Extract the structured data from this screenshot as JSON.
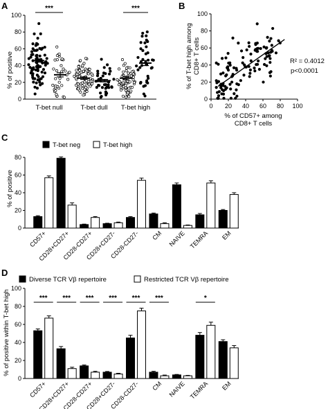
{
  "panel_labels": {
    "a": "A",
    "b": "B",
    "c": "C",
    "d": "D"
  },
  "chart_data": [
    {
      "id": "A",
      "type": "scatter",
      "subtype": "dot-column",
      "ylabel": "% of positive",
      "ylim": [
        0,
        100
      ],
      "yticks": [
        0,
        20,
        40,
        60,
        80,
        100
      ],
      "groups": [
        "T-bet null",
        "T-bet dull",
        "T-bet high"
      ],
      "columns": [
        {
          "group": "T-bet null",
          "marker": "filled",
          "mean": 46,
          "sem": 2
        },
        {
          "group": "T-bet null",
          "marker": "open",
          "mean": 29,
          "sem": 2.5
        },
        {
          "group": "T-bet dull",
          "marker": "open",
          "mean": 25,
          "sem": 1.5
        },
        {
          "group": "T-bet dull",
          "marker": "filled",
          "mean": 22,
          "sem": 1.5
        },
        {
          "group": "T-bet high",
          "marker": "open",
          "mean": 25,
          "sem": 2
        },
        {
          "group": "T-bet high",
          "marker": "filled",
          "mean": 43,
          "sem": 3
        }
      ],
      "significance": [
        {
          "group": "T-bet null",
          "label": "***"
        },
        {
          "group": "T-bet high",
          "label": "***"
        }
      ]
    },
    {
      "id": "B",
      "type": "scatter",
      "xlabel_lines": [
        "% of CD57+ among",
        "CD8+ T cells"
      ],
      "ylabel_lines": [
        "% of T-bet high among",
        "CD8+ T cells"
      ],
      "xlim": [
        0,
        100
      ],
      "ylim": [
        0,
        100
      ],
      "xticks": [
        0,
        20,
        40,
        60,
        80,
        100
      ],
      "yticks": [
        0,
        20,
        40,
        60,
        80,
        100
      ],
      "regression": {
        "x": [
          8,
          85
        ],
        "y": [
          15,
          70
        ]
      },
      "r2_text": "R² = 0.4012",
      "p_text": "p<0.0001"
    },
    {
      "id": "C",
      "type": "bar",
      "ylabel": "% of positive",
      "ylim": [
        0,
        80
      ],
      "yticks": [
        0,
        20,
        40,
        60,
        80
      ],
      "categories": [
        "CD57+",
        "CD28+CD27+",
        "CD28-CD27+",
        "CD28+CD27-",
        "CD28-CD27-",
        "CM",
        "NAIVE",
        "TEMRA",
        "EM"
      ],
      "series": [
        {
          "name": "T-bet neg",
          "fill": "#000000",
          "values": [
            13,
            79,
            4,
            5,
            12,
            16,
            49,
            15,
            20
          ],
          "errors": [
            1,
            1.5,
            0.5,
            0.5,
            1,
            1,
            2,
            1.5,
            1
          ]
        },
        {
          "name": "T-bet high",
          "fill": "#ffffff",
          "values": [
            57,
            26,
            12,
            6,
            54,
            5,
            3,
            51,
            38
          ],
          "errors": [
            2,
            2.5,
            1,
            0.8,
            2.5,
            1,
            0.5,
            2.5,
            2
          ]
        }
      ]
    },
    {
      "id": "D",
      "type": "bar",
      "ylabel": "% of positive within T-bet high",
      "ylim": [
        0,
        100
      ],
      "yticks": [
        0,
        20,
        40,
        60,
        80,
        100
      ],
      "categories": [
        "CD57+",
        "CD28+CD27+",
        "CD28-CD27+",
        "CD28+CD27-",
        "CD28-CD27-",
        "CM",
        "NAIVE",
        "TEMRA",
        "EM"
      ],
      "series": [
        {
          "name": "Diverse TCR Vβ repertoire",
          "fill": "#000000",
          "values": [
            53,
            33,
            14,
            7,
            45,
            7,
            4,
            48,
            41
          ],
          "errors": [
            2,
            2.5,
            1,
            0.8,
            3,
            1,
            0.5,
            3,
            2
          ]
        },
        {
          "name": "Restricted TCR Vβ repertoire",
          "fill": "#ffffff",
          "values": [
            67,
            11,
            7,
            5,
            75,
            3,
            3,
            59,
            34
          ],
          "errors": [
            2.5,
            1.5,
            1,
            0.8,
            3,
            0.8,
            0.5,
            3.5,
            2.5
          ]
        }
      ],
      "significance": [
        {
          "category": "CD57+",
          "label": "***"
        },
        {
          "category": "CD28+CD27+",
          "label": "***"
        },
        {
          "category": "CD28-CD27+",
          "label": "***"
        },
        {
          "category": "CD28+CD27-",
          "label": "***"
        },
        {
          "category": "CD28-CD27-",
          "label": "***"
        },
        {
          "category": "CM",
          "label": "***"
        },
        {
          "category": "TEMRA",
          "label": "*"
        }
      ]
    }
  ]
}
